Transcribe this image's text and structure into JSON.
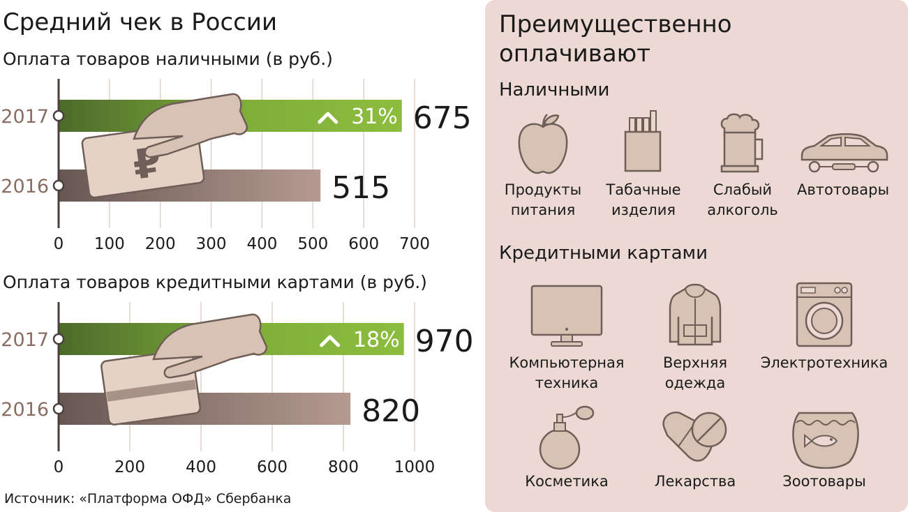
{
  "title": "Средний чек в России",
  "source": "Источник: «Платформа ОФД» Сбербанка",
  "chart_data": [
    {
      "type": "bar",
      "title": "Оплата товаров наличными (в руб.)",
      "categories": [
        "2017",
        "2016"
      ],
      "values": [
        675,
        515
      ],
      "value_labels": [
        "675",
        "515"
      ],
      "change_label": "31%",
      "xlim": [
        0,
        700
      ],
      "ticks": [
        0,
        100,
        200,
        300,
        400,
        500,
        600,
        700
      ],
      "tick_labels": [
        "0",
        "100",
        "200",
        "300",
        "400",
        "500",
        "600",
        "700"
      ],
      "grid": true,
      "colors": {
        "2017": "#8dbd3e",
        "2016": "#b59a91"
      }
    },
    {
      "type": "bar",
      "title": "Оплата товаров кредитными картами (в руб.)",
      "categories": [
        "2017",
        "2016"
      ],
      "values": [
        970,
        820
      ],
      "value_labels": [
        "970",
        "820"
      ],
      "change_label": "18%",
      "xlim": [
        0,
        1000
      ],
      "ticks": [
        0,
        200,
        400,
        600,
        800,
        1000
      ],
      "tick_labels": [
        "0",
        "200",
        "400",
        "600",
        "800",
        "1000"
      ],
      "grid": true,
      "colors": {
        "2017": "#8dbd3e",
        "2016": "#b59a91"
      }
    }
  ],
  "panel": {
    "title_line1": "Преимущественно",
    "title_line2": "оплачивают",
    "cash": {
      "heading": "Наличными",
      "items": [
        {
          "line1": "Продукты",
          "line2": "питания",
          "icon": "apple-icon"
        },
        {
          "line1": "Табачные",
          "line2": "изделия",
          "icon": "cigarettes-icon"
        },
        {
          "line1": "Слабый",
          "line2": "алкоголь",
          "icon": "beer-mug-icon"
        },
        {
          "line1": "Автотовары",
          "line2": "",
          "icon": "car-icon"
        }
      ]
    },
    "cards": {
      "heading": "Кредитными картами",
      "items": [
        {
          "line1": "Компьютерная",
          "line2": "техника",
          "icon": "monitor-icon"
        },
        {
          "line1": "Верхняя",
          "line2": "одежда",
          "icon": "hoodie-icon"
        },
        {
          "line1": "Электротехника",
          "line2": "",
          "icon": "washing-machine-icon"
        },
        {
          "line1": "Косметика",
          "line2": "",
          "icon": "perfume-icon"
        },
        {
          "line1": "Лекарства",
          "line2": "",
          "icon": "pills-icon"
        },
        {
          "line1": "Зоотовары",
          "line2": "",
          "icon": "aquarium-icon"
        }
      ]
    }
  }
}
